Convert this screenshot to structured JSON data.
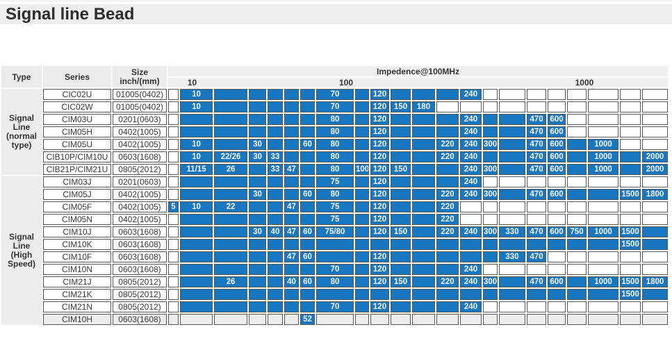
{
  "title": "Signal line Bead",
  "colors": {
    "accent_blue": "#1777c0",
    "cell_border": "#555555",
    "header_bg": "#ebebeb",
    "muted_bg": "#ececec"
  },
  "table": {
    "headers": {
      "type": "Type",
      "series": "Series",
      "size_line1": "Size",
      "size_line2": "inch/(mm)",
      "impedance": "Impedence@100MHz"
    },
    "scale": [
      {
        "label": "10",
        "pos_pct": 4.8
      },
      {
        "label": "100",
        "pos_pct": 35.6
      },
      {
        "label": "1000",
        "pos_pct": 83.3
      }
    ],
    "layout": {
      "left_col_widths": [
        58,
        98,
        78
      ],
      "impedance_col_widths": [
        15,
        47,
        48,
        25,
        22,
        21,
        21,
        54,
        20,
        27,
        29,
        33,
        32,
        31,
        21,
        38,
        28,
        26,
        28,
        44,
        30,
        37
      ]
    },
    "cell_legend": {
      "empty_cell": "",
      "blue_unlabeled_cell": "#",
      "other": "blue cell with printed impedance value"
    },
    "groups": [
      {
        "type_lines": [
          "Signal",
          "Line",
          "(normal",
          "type)"
        ],
        "rows": [
          {
            "series": "CIC02U",
            "size": "01005(0402)",
            "cells": [
              "",
              "10",
              "#",
              "#",
              "#",
              "#",
              "#",
              "70",
              "#",
              "120",
              "#",
              "#",
              "#",
              "240",
              "",
              "",
              "",
              "",
              "",
              "",
              "",
              ""
            ]
          },
          {
            "series": "CIC02W",
            "size": "01005(0402)",
            "cells": [
              "",
              "10",
              "#",
              "#",
              "#",
              "#",
              "#",
              "70",
              "#",
              "120",
              "150",
              "180",
              "",
              "",
              "",
              "",
              "",
              "",
              "",
              "",
              "",
              ""
            ]
          },
          {
            "series": "CIM03U",
            "size": "0201(0603)",
            "cells": [
              "",
              "#",
              "#",
              "#",
              "#",
              "#",
              "#",
              "80",
              "#",
              "120",
              "#",
              "#",
              "#",
              "240",
              "#",
              "#",
              "470",
              "600",
              "",
              "",
              "",
              ""
            ]
          },
          {
            "series": "CIM05H",
            "size": "0402(1005)",
            "cells": [
              "",
              "#",
              "#",
              "#",
              "#",
              "#",
              "#",
              "80",
              "#",
              "120",
              "#",
              "#",
              "#",
              "240",
              "#",
              "#",
              "470",
              "600",
              "",
              "",
              "",
              ""
            ]
          },
          {
            "series": "CIM05U",
            "size": "0402(1005)",
            "cells": [
              "",
              "10",
              "#",
              "30",
              "#",
              "#",
              "60",
              "80",
              "#",
              "120",
              "#",
              "#",
              "220",
              "240",
              "300",
              "#",
              "470",
              "600",
              "#",
              "1000",
              "",
              ""
            ]
          },
          {
            "series": "CIB10P/CIM10U",
            "size": "0603(1608)",
            "cells": [
              "",
              "10",
              "22/26",
              "30",
              "33",
              "#",
              "#",
              "80",
              "#",
              "120",
              "#",
              "#",
              "220",
              "240",
              "#",
              "#",
              "470",
              "600",
              "#",
              "1000",
              "#",
              "2000"
            ]
          },
          {
            "series": "CIB21P/CIM21U",
            "size": "0805(2012)",
            "cells": [
              "",
              "11/15",
              "26",
              "#",
              "33",
              "47",
              "#",
              "80",
              "100",
              "120",
              "150",
              "#",
              "#",
              "240",
              "300",
              "#",
              "470",
              "600",
              "#",
              "1000",
              "#",
              "2000"
            ]
          }
        ]
      },
      {
        "type_lines": [
          "Signal",
          "Line",
          "(High",
          "Speed)"
        ],
        "rows": [
          {
            "series": "CIM03J",
            "size": "0201(0603)",
            "cells": [
              "",
              "#",
              "#",
              "#",
              "#",
              "#",
              "#",
              "75",
              "#",
              "120",
              "#",
              "#",
              "#",
              "240",
              "",
              "",
              "",
              "",
              "",
              "",
              "",
              ""
            ]
          },
          {
            "series": "CIM05J",
            "size": "0402(1005)",
            "cells": [
              "",
              "#",
              "#",
              "30",
              "#",
              "#",
              "60",
              "80",
              "#",
              "120",
              "#",
              "#",
              "220",
              "240",
              "300",
              "#",
              "470",
              "600",
              "#",
              "#",
              "1500",
              "1800"
            ]
          },
          {
            "series": "CIM05F",
            "size": "0402(1005)",
            "cells": [
              "5",
              "10",
              "22",
              "#",
              "#",
              "47",
              "#",
              "75",
              "#",
              "120",
              "#",
              "#",
              "220",
              "",
              "",
              "",
              "",
              "",
              "",
              "",
              "",
              ""
            ]
          },
          {
            "series": "CIM05N",
            "size": "0402(1005)",
            "cells": [
              "",
              "#",
              "#",
              "#",
              "#",
              "#",
              "#",
              "75",
              "#",
              "120",
              "#",
              "#",
              "220",
              "",
              "",
              "",
              "",
              "",
              "",
              "",
              "",
              ""
            ]
          },
          {
            "series": "CIM10J",
            "size": "0603(1608)",
            "cells": [
              "",
              "#",
              "#",
              "30",
              "40",
              "47",
              "60",
              "75/80",
              "#",
              "120",
              "150",
              "#",
              "220",
              "240",
              "300",
              "330",
              "470",
              "600",
              "750",
              "1000",
              "1500",
              "#"
            ]
          },
          {
            "series": "CIM10K",
            "size": "0603(1608)",
            "cells": [
              "",
              "#",
              "#",
              "#",
              "#",
              "#",
              "#",
              "#",
              "#",
              "#",
              "#",
              "#",
              "#",
              "#",
              "#",
              "#",
              "#",
              "#",
              "#",
              "#",
              "1500",
              "#"
            ]
          },
          {
            "series": "CIM10F",
            "size": "0603(1608)",
            "cells": [
              "",
              "#",
              "#",
              "#",
              "#",
              "47",
              "60",
              "#",
              "#",
              "120",
              "#",
              "#",
              "#",
              "#",
              "#",
              "330",
              "470",
              "",
              "",
              "",
              "",
              ""
            ]
          },
          {
            "series": "CIM10N",
            "size": "0603(1608)",
            "cells": [
              "",
              "#",
              "#",
              "#",
              "#",
              "#",
              "#",
              "70",
              "#",
              "120",
              "#",
              "#",
              "#",
              "240",
              "",
              "",
              "",
              "",
              "",
              "",
              "",
              ""
            ]
          },
          {
            "series": "CIM21J",
            "size": "0805(2012)",
            "cells": [
              "",
              "#",
              "26",
              "#",
              "#",
              "40",
              "60",
              "80",
              "#",
              "120",
              "150",
              "#",
              "220",
              "240",
              "300",
              "#",
              "470",
              "600",
              "#",
              "1000",
              "1500",
              "1800"
            ]
          },
          {
            "series": "CIM21K",
            "size": "0805(2012)",
            "cells": [
              "",
              "#",
              "#",
              "#",
              "#",
              "#",
              "#",
              "#",
              "#",
              "#",
              "#",
              "#",
              "#",
              "#",
              "#",
              "#",
              "#",
              "#",
              "#",
              "#",
              "1500",
              "#"
            ]
          },
          {
            "series": "CIM21N",
            "size": "0805(2012)",
            "cells": [
              "",
              "#",
              "#",
              "#",
              "#",
              "#",
              "#",
              "70",
              "#",
              "120",
              "#",
              "#",
              "#",
              "240",
              "",
              "",
              "",
              "",
              "",
              "",
              "",
              ""
            ]
          },
          {
            "series": "CIM10H",
            "size": "0603(1608)",
            "muted": true,
            "cells": [
              "",
              "",
              "",
              "",
              "",
              "",
              "52",
              "",
              "",
              "",
              "",
              "",
              "",
              "",
              "",
              "",
              "",
              "",
              "",
              "",
              "",
              ""
            ]
          }
        ]
      }
    ]
  }
}
